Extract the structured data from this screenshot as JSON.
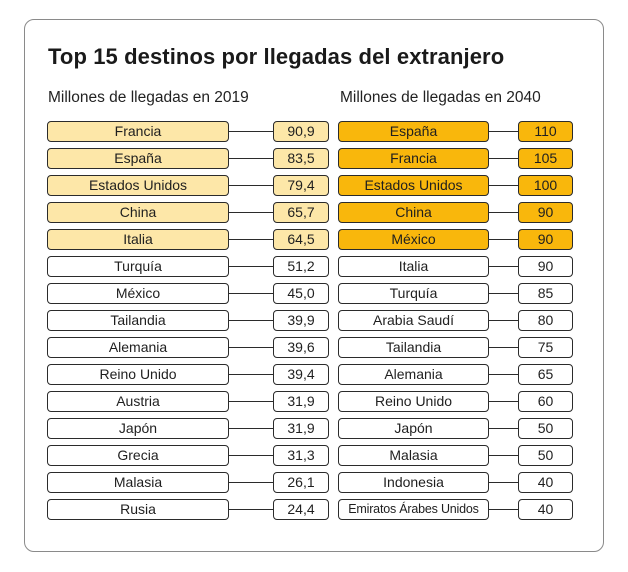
{
  "chart_data": {
    "type": "table",
    "title": "Top 15 destinos por llegadas del extranjero",
    "tables": [
      {
        "subtitle": "Millones de llegadas en 2019",
        "highlight_color": "#fde7a8",
        "rows": [
          {
            "country": "Francia",
            "value": "90,9",
            "highlight": true
          },
          {
            "country": "España",
            "value": "83,5",
            "highlight": true
          },
          {
            "country": "Estados Unidos",
            "value": "79,4",
            "highlight": true
          },
          {
            "country": "China",
            "value": "65,7",
            "highlight": true
          },
          {
            "country": "Italia",
            "value": "64,5",
            "highlight": true
          },
          {
            "country": "Turquía",
            "value": "51,2",
            "highlight": false
          },
          {
            "country": "México",
            "value": "45,0",
            "highlight": false
          },
          {
            "country": "Tailandia",
            "value": "39,9",
            "highlight": false
          },
          {
            "country": "Alemania",
            "value": "39,6",
            "highlight": false
          },
          {
            "country": "Reino Unido",
            "value": "39,4",
            "highlight": false
          },
          {
            "country": "Austria",
            "value": "31,9",
            "highlight": false
          },
          {
            "country": "Japón",
            "value": "31,9",
            "highlight": false
          },
          {
            "country": "Grecia",
            "value": "31,3",
            "highlight": false
          },
          {
            "country": "Malasia",
            "value": "26,1",
            "highlight": false
          },
          {
            "country": "Rusia",
            "value": "24,4",
            "highlight": false
          }
        ]
      },
      {
        "subtitle": "Millones de llegadas en 2040",
        "highlight_color": "#f9b70c",
        "rows": [
          {
            "country": "España",
            "value": "110",
            "highlight": true
          },
          {
            "country": "Francia",
            "value": "105",
            "highlight": true
          },
          {
            "country": "Estados Unidos",
            "value": "100",
            "highlight": true
          },
          {
            "country": "China",
            "value": "90",
            "highlight": true
          },
          {
            "country": "México",
            "value": "90",
            "highlight": true
          },
          {
            "country": "Italia",
            "value": "90",
            "highlight": false
          },
          {
            "country": "Turquía",
            "value": "85",
            "highlight": false
          },
          {
            "country": "Arabia Saudí",
            "value": "80",
            "highlight": false
          },
          {
            "country": "Tailandia",
            "value": "75",
            "highlight": false
          },
          {
            "country": "Alemania",
            "value": "65",
            "highlight": false
          },
          {
            "country": "Reino Unido",
            "value": "60",
            "highlight": false
          },
          {
            "country": "Japón",
            "value": "50",
            "highlight": false
          },
          {
            "country": "Malasia",
            "value": "50",
            "highlight": false
          },
          {
            "country": "Indonesia",
            "value": "40",
            "highlight": false
          },
          {
            "country": "Emiratos Árabes Unidos",
            "value": "40",
            "highlight": false
          }
        ]
      }
    ]
  }
}
